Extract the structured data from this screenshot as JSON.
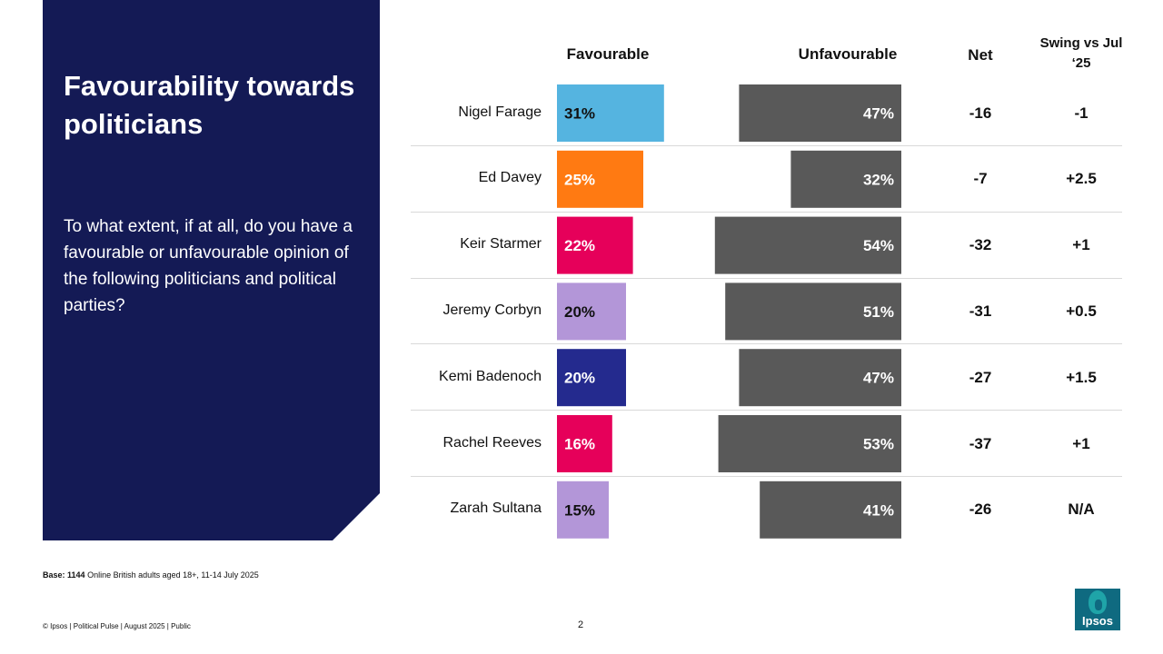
{
  "panel": {
    "title": "Favourability towards politicians",
    "question": "To what extent, if at all, do you have a favourable or unfavourable opinion of the following politicians and political parties?"
  },
  "headers": {
    "favourable": "Favourable",
    "unfavourable": "Unfavourable",
    "net": "Net",
    "swing": "Swing vs Jul ‘25"
  },
  "chart_data": {
    "type": "bar",
    "categories": [
      "Nigel Farage",
      "Ed Davey",
      "Keir Starmer",
      "Jeremy Corbyn",
      "Kemi Badenoch",
      "Rachel Reeves",
      "Zarah Sultana"
    ],
    "series": [
      {
        "name": "Favourable",
        "values": [
          31,
          25,
          22,
          20,
          20,
          16,
          15
        ],
        "labels": [
          "31%",
          "25%",
          "22%",
          "20%",
          "20%",
          "16%",
          "15%"
        ],
        "colors": [
          "#55b4e0",
          "#ff7a12",
          "#e6005a",
          "#b396d8",
          "#242a8e",
          "#e6005a",
          "#b396d8"
        ]
      },
      {
        "name": "Unfavourable",
        "values": [
          47,
          32,
          54,
          51,
          47,
          53,
          41
        ],
        "labels": [
          "47%",
          "32%",
          "54%",
          "51%",
          "47%",
          "53%",
          "41%"
        ],
        "color": "#595959"
      }
    ],
    "net": [
      "-16",
      "-7",
      "-32",
      "-31",
      "-27",
      "-37",
      "-26"
    ],
    "swing": [
      "-1",
      "+2.5",
      "+1",
      "+0.5",
      "+1.5",
      "+1",
      "N/A"
    ]
  },
  "base": {
    "label": "Base:",
    "count": "1144",
    "text": "Online British adults aged 18+,  11-14 July 2025"
  },
  "footer": {
    "text": "© Ipsos | Political Pulse | August 2025 | Public",
    "page": "2",
    "logo": "Ipsos"
  }
}
